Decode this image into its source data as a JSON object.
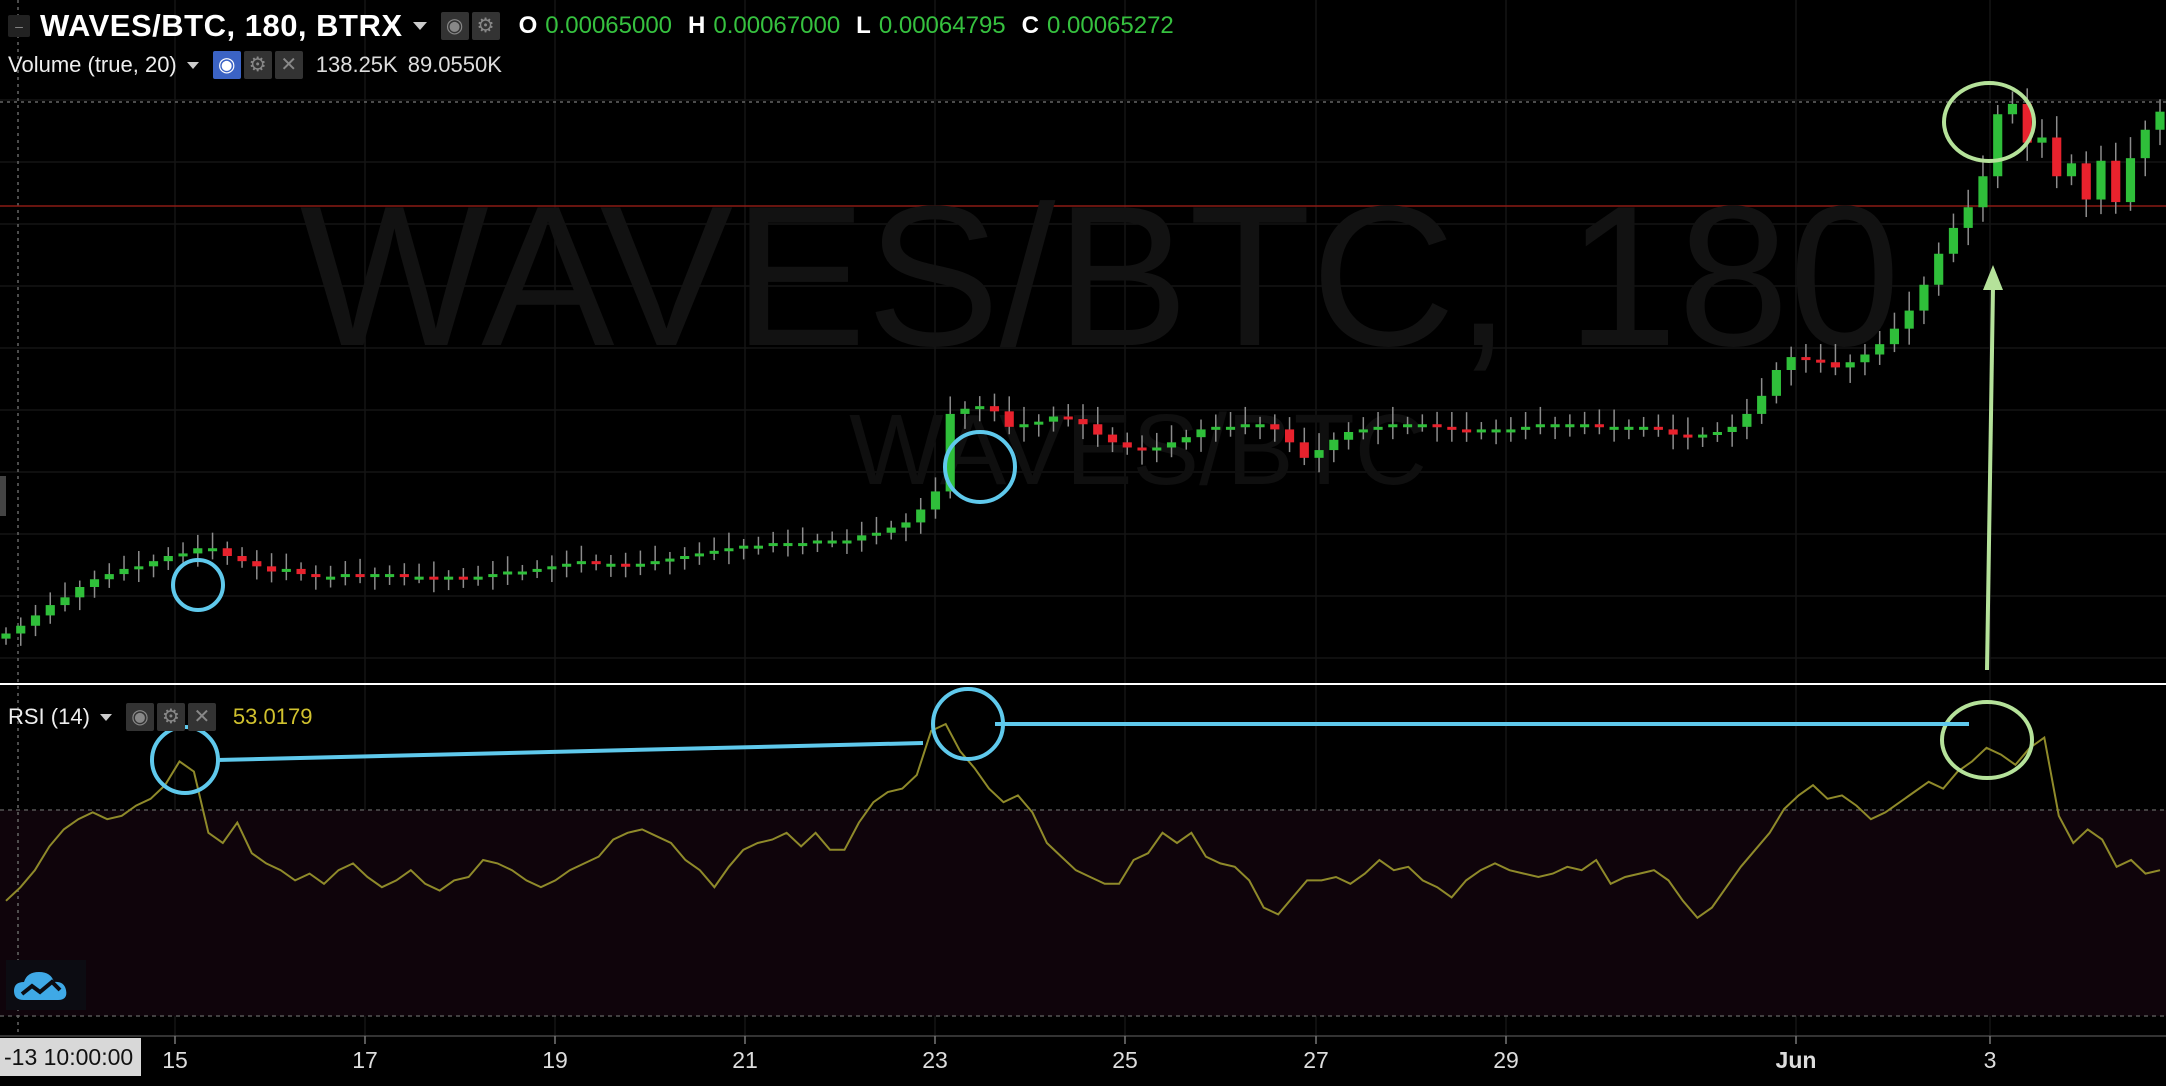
{
  "header": {
    "symbol": "WAVES/BTC, 180, BTRX",
    "open_label": "O",
    "open": "0.00065000",
    "high_label": "H",
    "high": "0.00067000",
    "low_label": "L",
    "low": "0.00064795",
    "close_label": "C",
    "close": "0.00065272"
  },
  "volume": {
    "label": "Volume (true, 20)",
    "value1": "138.25K",
    "value2": "89.0550K"
  },
  "rsi": {
    "label": "RSI (14)",
    "value": "53.0179"
  },
  "watermark": {
    "main": "WAVES/BTC, 180",
    "sub": "WAVES/BTC"
  },
  "time_axis": {
    "crosshair_label": "-13 10:00:00",
    "ticks": [
      "15",
      "17",
      "19",
      "21",
      "23",
      "25",
      "27",
      "29",
      "Jun",
      "3"
    ]
  },
  "icons": [
    "eye-icon",
    "gear-icon",
    "close-icon",
    "chevron-down-icon",
    "tradingview-cloud-icon"
  ],
  "colors": {
    "up": "#2fbf3a",
    "down": "#e8222d",
    "rsi_line": "#8f8a2a",
    "annotation_blue": "#5fc9ec",
    "annotation_green": "#b5e29a",
    "background": "#000000"
  },
  "chart_data": {
    "type": "candlestick",
    "x_ticks": [
      "15",
      "17",
      "19",
      "21",
      "23",
      "25",
      "27",
      "29",
      "Jun",
      "3"
    ],
    "price_close_path": [
      0.000398,
      0.000401,
      0.000405,
      0.000409,
      0.000412,
      0.000416,
      0.000419,
      0.000421,
      0.000423,
      0.000424,
      0.000426,
      0.000428,
      0.000429,
      0.000431,
      0.000431,
      0.000428,
      0.000426,
      0.000424,
      0.000422,
      0.000423,
      0.000421,
      0.00042,
      0.00042,
      0.000421,
      0.00042,
      0.000421,
      0.000421,
      0.00042,
      0.00042,
      0.000419,
      0.00042,
      0.000419,
      0.00042,
      0.000421,
      0.000422,
      0.000422,
      0.000423,
      0.000424,
      0.000425,
      0.000426,
      0.000425,
      0.000425,
      0.000424,
      0.000425,
      0.000426,
      0.000427,
      0.000428,
      0.000429,
      0.00043,
      0.000431,
      0.000432,
      0.000432,
      0.000433,
      0.000433,
      0.000433,
      0.000434,
      0.000434,
      0.000434,
      0.000436,
      0.000437,
      0.000439,
      0.000441,
      0.000446,
      0.000453,
      0.000483,
      0.000485,
      0.000486,
      0.000484,
      0.000478,
      0.000479,
      0.00048,
      0.000482,
      0.000481,
      0.000479,
      0.000475,
      0.000472,
      0.00047,
      0.000469,
      0.00047,
      0.000472,
      0.000474,
      0.000477,
      0.000478,
      0.000478,
      0.000479,
      0.000479,
      0.000477,
      0.000472,
      0.000466,
      0.000469,
      0.000473,
      0.000476,
      0.000477,
      0.000478,
      0.000479,
      0.000479,
      0.000479,
      0.000478,
      0.000477,
      0.000476,
      0.000477,
      0.000477,
      0.000477,
      0.000478,
      0.000479,
      0.000479,
      0.000479,
      0.000479,
      0.000478,
      0.000478,
      0.000478,
      0.000478,
      0.000477,
      0.000475,
      0.000474,
      0.000475,
      0.000476,
      0.000478,
      0.000483,
      0.00049,
      0.0005,
      0.000505,
      0.000504,
      0.000503,
      0.000501,
      0.000503,
      0.000506,
      0.00051,
      0.000516,
      0.000523,
      0.000533,
      0.000545,
      0.000555,
      0.000563,
      0.000575,
      0.000599,
      0.000603,
      0.000588,
      0.00059,
      0.000575,
      0.00058,
      0.000566,
      0.000581,
      0.000565,
      0.000582,
      0.000593,
      0.0006
    ],
    "price_ylim": [
      0.00038,
      0.00062
    ],
    "volume_values": [
      "138.25K",
      "89.0550K"
    ],
    "rsi_values": [
      38,
      42,
      47,
      54,
      59,
      62,
      64,
      62,
      63,
      66,
      68,
      72,
      79,
      76,
      58,
      55,
      61,
      52,
      49,
      47,
      44,
      46,
      43,
      47,
      49,
      45,
      42,
      44,
      47,
      43,
      41,
      44,
      45,
      50,
      49,
      47,
      44,
      42,
      44,
      47,
      49,
      51,
      56,
      58,
      59,
      57,
      55,
      50,
      47,
      42,
      48,
      53,
      55,
      56,
      58,
      54,
      58,
      53,
      53,
      61,
      67,
      70,
      71,
      75,
      88,
      90,
      82,
      77,
      71,
      67,
      69,
      64,
      55,
      51,
      47,
      45,
      43,
      43,
      50,
      52,
      58,
      55,
      58,
      51,
      49,
      48,
      44,
      36,
      34,
      39,
      44,
      44,
      45,
      43,
      46,
      50,
      47,
      48,
      44,
      42,
      39,
      44,
      47,
      49,
      47,
      46,
      45,
      46,
      48,
      47,
      50,
      43,
      45,
      46,
      47,
      44,
      38,
      33,
      36,
      42,
      48,
      53,
      58,
      65,
      69,
      72,
      68,
      69,
      66,
      62,
      64,
      67,
      70,
      73,
      71,
      76,
      79,
      83,
      81,
      78,
      83,
      86,
      63,
      55,
      59,
      56,
      48,
      50,
      46,
      47
    ],
    "rsi_ylim": [
      0,
      100
    ],
    "rsi_levels": [
      70,
      30
    ]
  }
}
